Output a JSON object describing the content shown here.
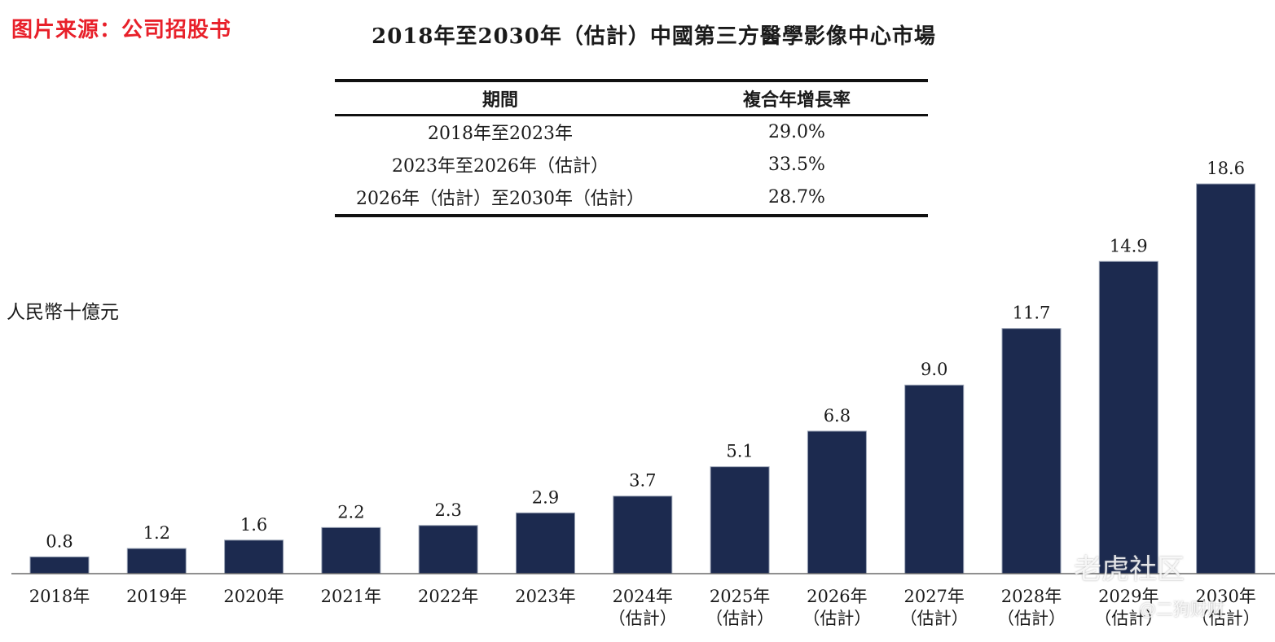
{
  "source_label": "图片来源：公司招股书",
  "cagr_table": {
    "headers": [
      "期間",
      "複合年增長率"
    ],
    "rows": [
      {
        "period": "2018年至2023年",
        "rate": "29.0%"
      },
      {
        "period": "2023年至2026年（估計）",
        "rate": "33.5%"
      },
      {
        "period": "2026年（估計）至2030年（估計）",
        "rate": "28.7%"
      }
    ]
  },
  "watermark": {
    "brand": "老虎社区",
    "user": "@二狗财财"
  },
  "colors": {
    "bar": "#1c2a4f",
    "source": "#e8202a"
  },
  "chart_data": {
    "type": "bar",
    "title": "2018年至2030年（估計）中國第三方醫學影像中心市場",
    "ylabel": "人民幣十億元",
    "xlabel": "",
    "categories": [
      [
        "2018年"
      ],
      [
        "2019年"
      ],
      [
        "2020年"
      ],
      [
        "2021年"
      ],
      [
        "2022年"
      ],
      [
        "2023年"
      ],
      [
        "2024年",
        "（估計）"
      ],
      [
        "2025年",
        "（估計）"
      ],
      [
        "2026年",
        "（估計）"
      ],
      [
        "2027年",
        "（估計）"
      ],
      [
        "2028年",
        "（估計）"
      ],
      [
        "2029年",
        "（估計）"
      ],
      [
        "2030年",
        "（估計）"
      ]
    ],
    "values": [
      0.8,
      1.2,
      1.6,
      2.2,
      2.3,
      2.9,
      3.7,
      5.1,
      6.8,
      9.0,
      11.7,
      14.9,
      18.6
    ],
    "value_labels": [
      "0.8",
      "1.2",
      "1.6",
      "2.2",
      "2.3",
      "2.9",
      "3.7",
      "5.1",
      "6.8",
      "9.0",
      "11.7",
      "14.9",
      "18.6"
    ],
    "ylim": [
      0,
      18.6
    ],
    "grid": false,
    "legend": "none"
  }
}
